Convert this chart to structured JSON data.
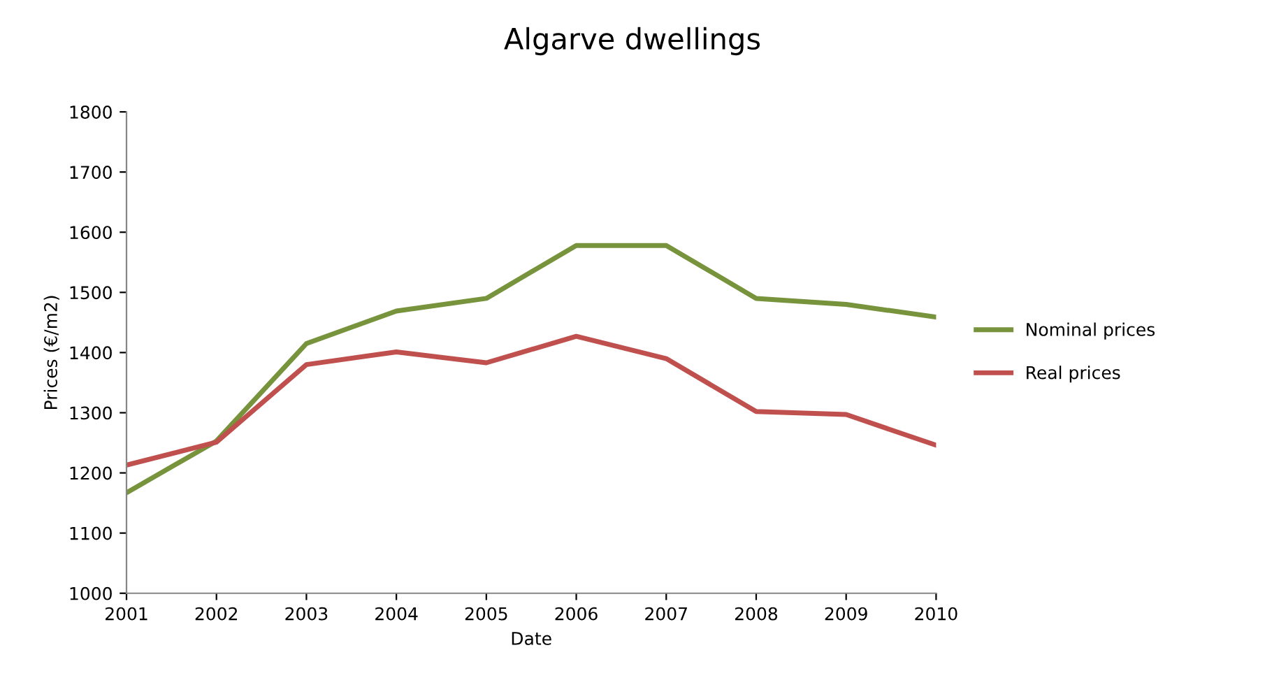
{
  "chart_data": {
    "type": "line",
    "title": "Algarve dwellings",
    "xlabel": "Date",
    "ylabel": "Prices (€/m2)",
    "x": [
      2001,
      2002,
      2003,
      2004,
      2005,
      2006,
      2007,
      2008,
      2009,
      2010
    ],
    "series": [
      {
        "name": "Nominal prices",
        "color": "#77933c",
        "values": [
          1167,
          1253,
          1415,
          1469,
          1490,
          1578,
          1578,
          1490,
          1480,
          1459
        ]
      },
      {
        "name": "Real prices",
        "color": "#c0504d",
        "values": [
          1213,
          1251,
          1380,
          1401,
          1383,
          1427,
          1390,
          1302,
          1297,
          1246
        ]
      }
    ],
    "xlim": [
      2001,
      2010
    ],
    "xticks": [
      2001,
      2002,
      2003,
      2004,
      2005,
      2006,
      2007,
      2008,
      2009,
      2010
    ],
    "ylim": [
      1000,
      1800
    ],
    "yticks": [
      1000,
      1100,
      1200,
      1300,
      1400,
      1500,
      1600,
      1700,
      1800
    ],
    "grid": false,
    "legend": "right",
    "marker": "none",
    "line_style": "solid"
  }
}
